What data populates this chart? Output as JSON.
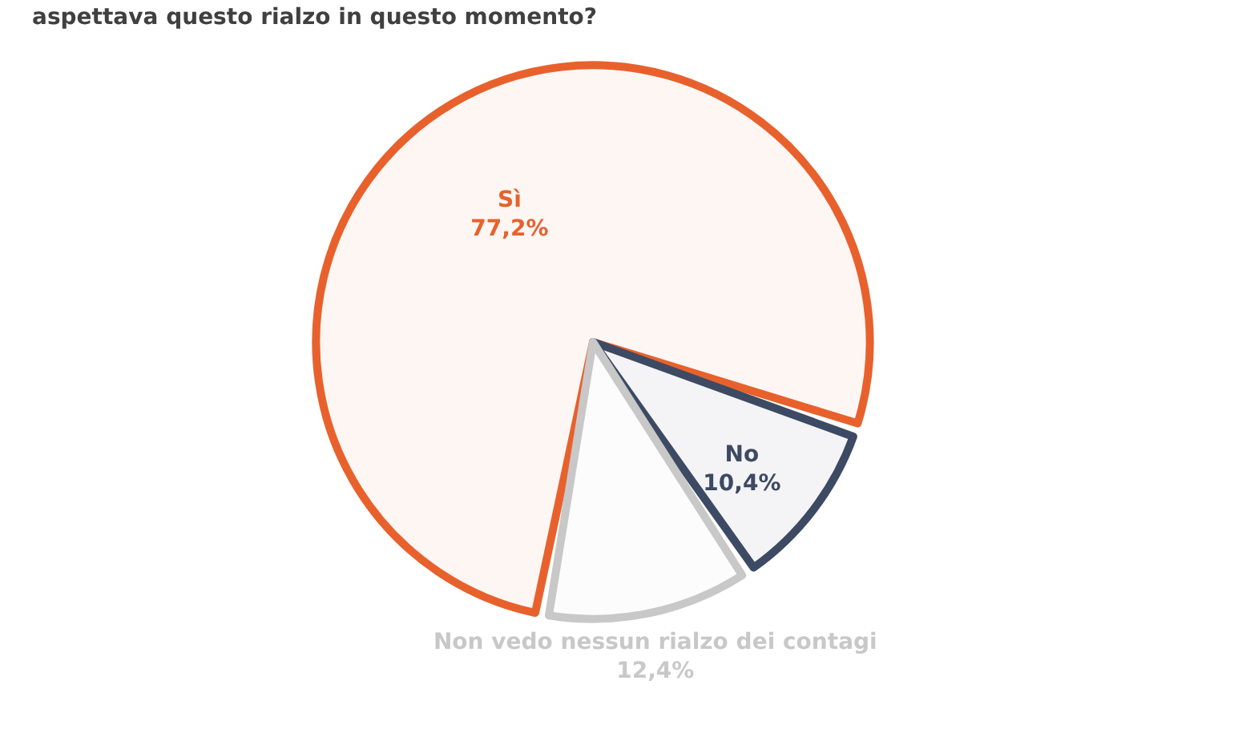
{
  "chart_data": {
    "type": "pie",
    "title": "aspettava questo rialzo in questo momento?",
    "categories": [
      "Sì",
      "No",
      "Non vedo nessun rialzo dei contagi"
    ],
    "values": [
      77.2,
      10.4,
      12.4
    ],
    "value_labels": [
      "77,2%",
      "10,4%",
      "12,4%"
    ],
    "colors": [
      "#e8612c",
      "#3d4a63",
      "#c8c8c8"
    ]
  }
}
